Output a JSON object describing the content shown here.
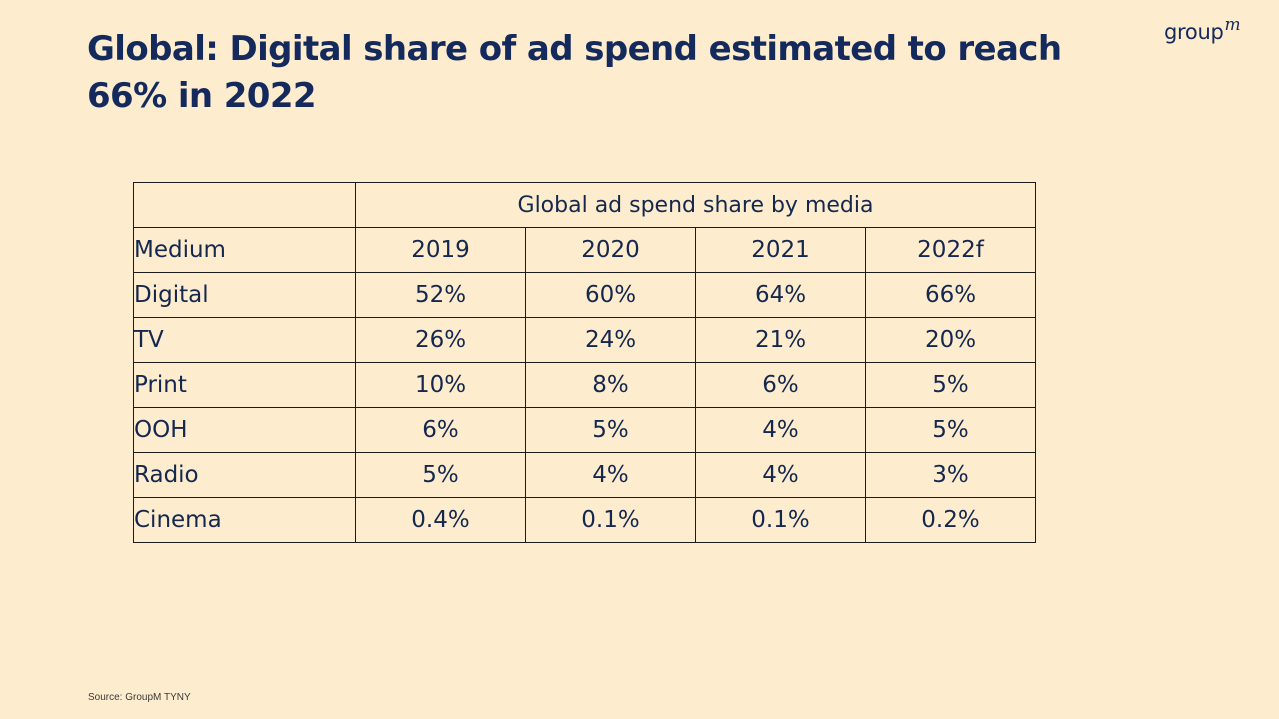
{
  "slide": {
    "title": "Global: Digital share of ad spend estimated to reach 66% in 2022",
    "logo_text": "group",
    "logo_suffix": "m",
    "source": "Source: GroupM TYNY"
  },
  "colors": {
    "background": "#fdeccd",
    "text": "#14274e",
    "border": "#1b1b1b"
  },
  "chart_data": {
    "type": "table",
    "title": "Global ad spend share by media",
    "columns": [
      "Medium",
      "2019",
      "2020",
      "2021",
      "2022f"
    ],
    "rows": [
      {
        "medium": "Digital",
        "cells": [
          "52%",
          "60%",
          "64%",
          "66%"
        ],
        "values": [
          52,
          60,
          64,
          66
        ]
      },
      {
        "medium": "TV",
        "cells": [
          "26%",
          "24%",
          "21%",
          "20%"
        ],
        "values": [
          26,
          24,
          21,
          20
        ]
      },
      {
        "medium": "Print",
        "cells": [
          "10%",
          "8%",
          "6%",
          "5%"
        ],
        "values": [
          10,
          8,
          6,
          5
        ]
      },
      {
        "medium": "OOH",
        "cells": [
          "6%",
          "5%",
          "4%",
          "5%"
        ],
        "values": [
          6,
          5,
          4,
          5
        ]
      },
      {
        "medium": "Radio",
        "cells": [
          "5%",
          "4%",
          "4%",
          "3%"
        ],
        "values": [
          5,
          4,
          4,
          3
        ]
      },
      {
        "medium": "Cinema",
        "cells": [
          "0.4%",
          "0.1%",
          "0.1%",
          "0.2%"
        ],
        "values": [
          0.4,
          0.1,
          0.1,
          0.2
        ]
      }
    ]
  }
}
